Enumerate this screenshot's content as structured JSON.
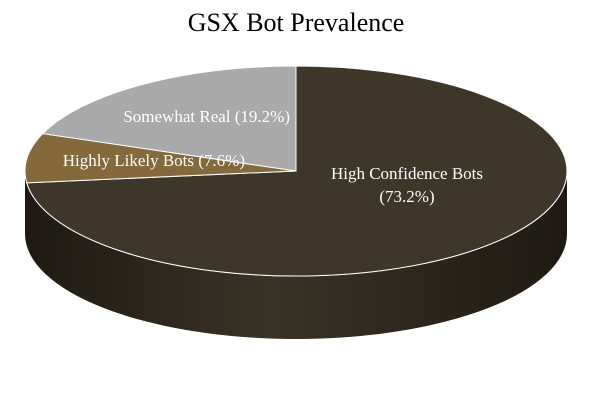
{
  "chart_data": {
    "type": "pie",
    "title": "GSX Bot Prevalence",
    "three_d": true,
    "slices": [
      {
        "name": "High Confidence Bots",
        "value": 73.2,
        "label_line1": "High Confidence Bots",
        "label_line2": "(73.2%)",
        "color": "#3e3628"
      },
      {
        "name": "Highly Likely Bots",
        "value": 7.6,
        "label_line1": "Highly Likely Bots (7.6%)",
        "label_line2": "",
        "color": "#84693d"
      },
      {
        "name": "Somewhat Real",
        "value": 19.2,
        "label_line1": "Somewhat Real (19.2%)",
        "label_line2": "",
        "color": "#a9a9a9"
      }
    ]
  }
}
